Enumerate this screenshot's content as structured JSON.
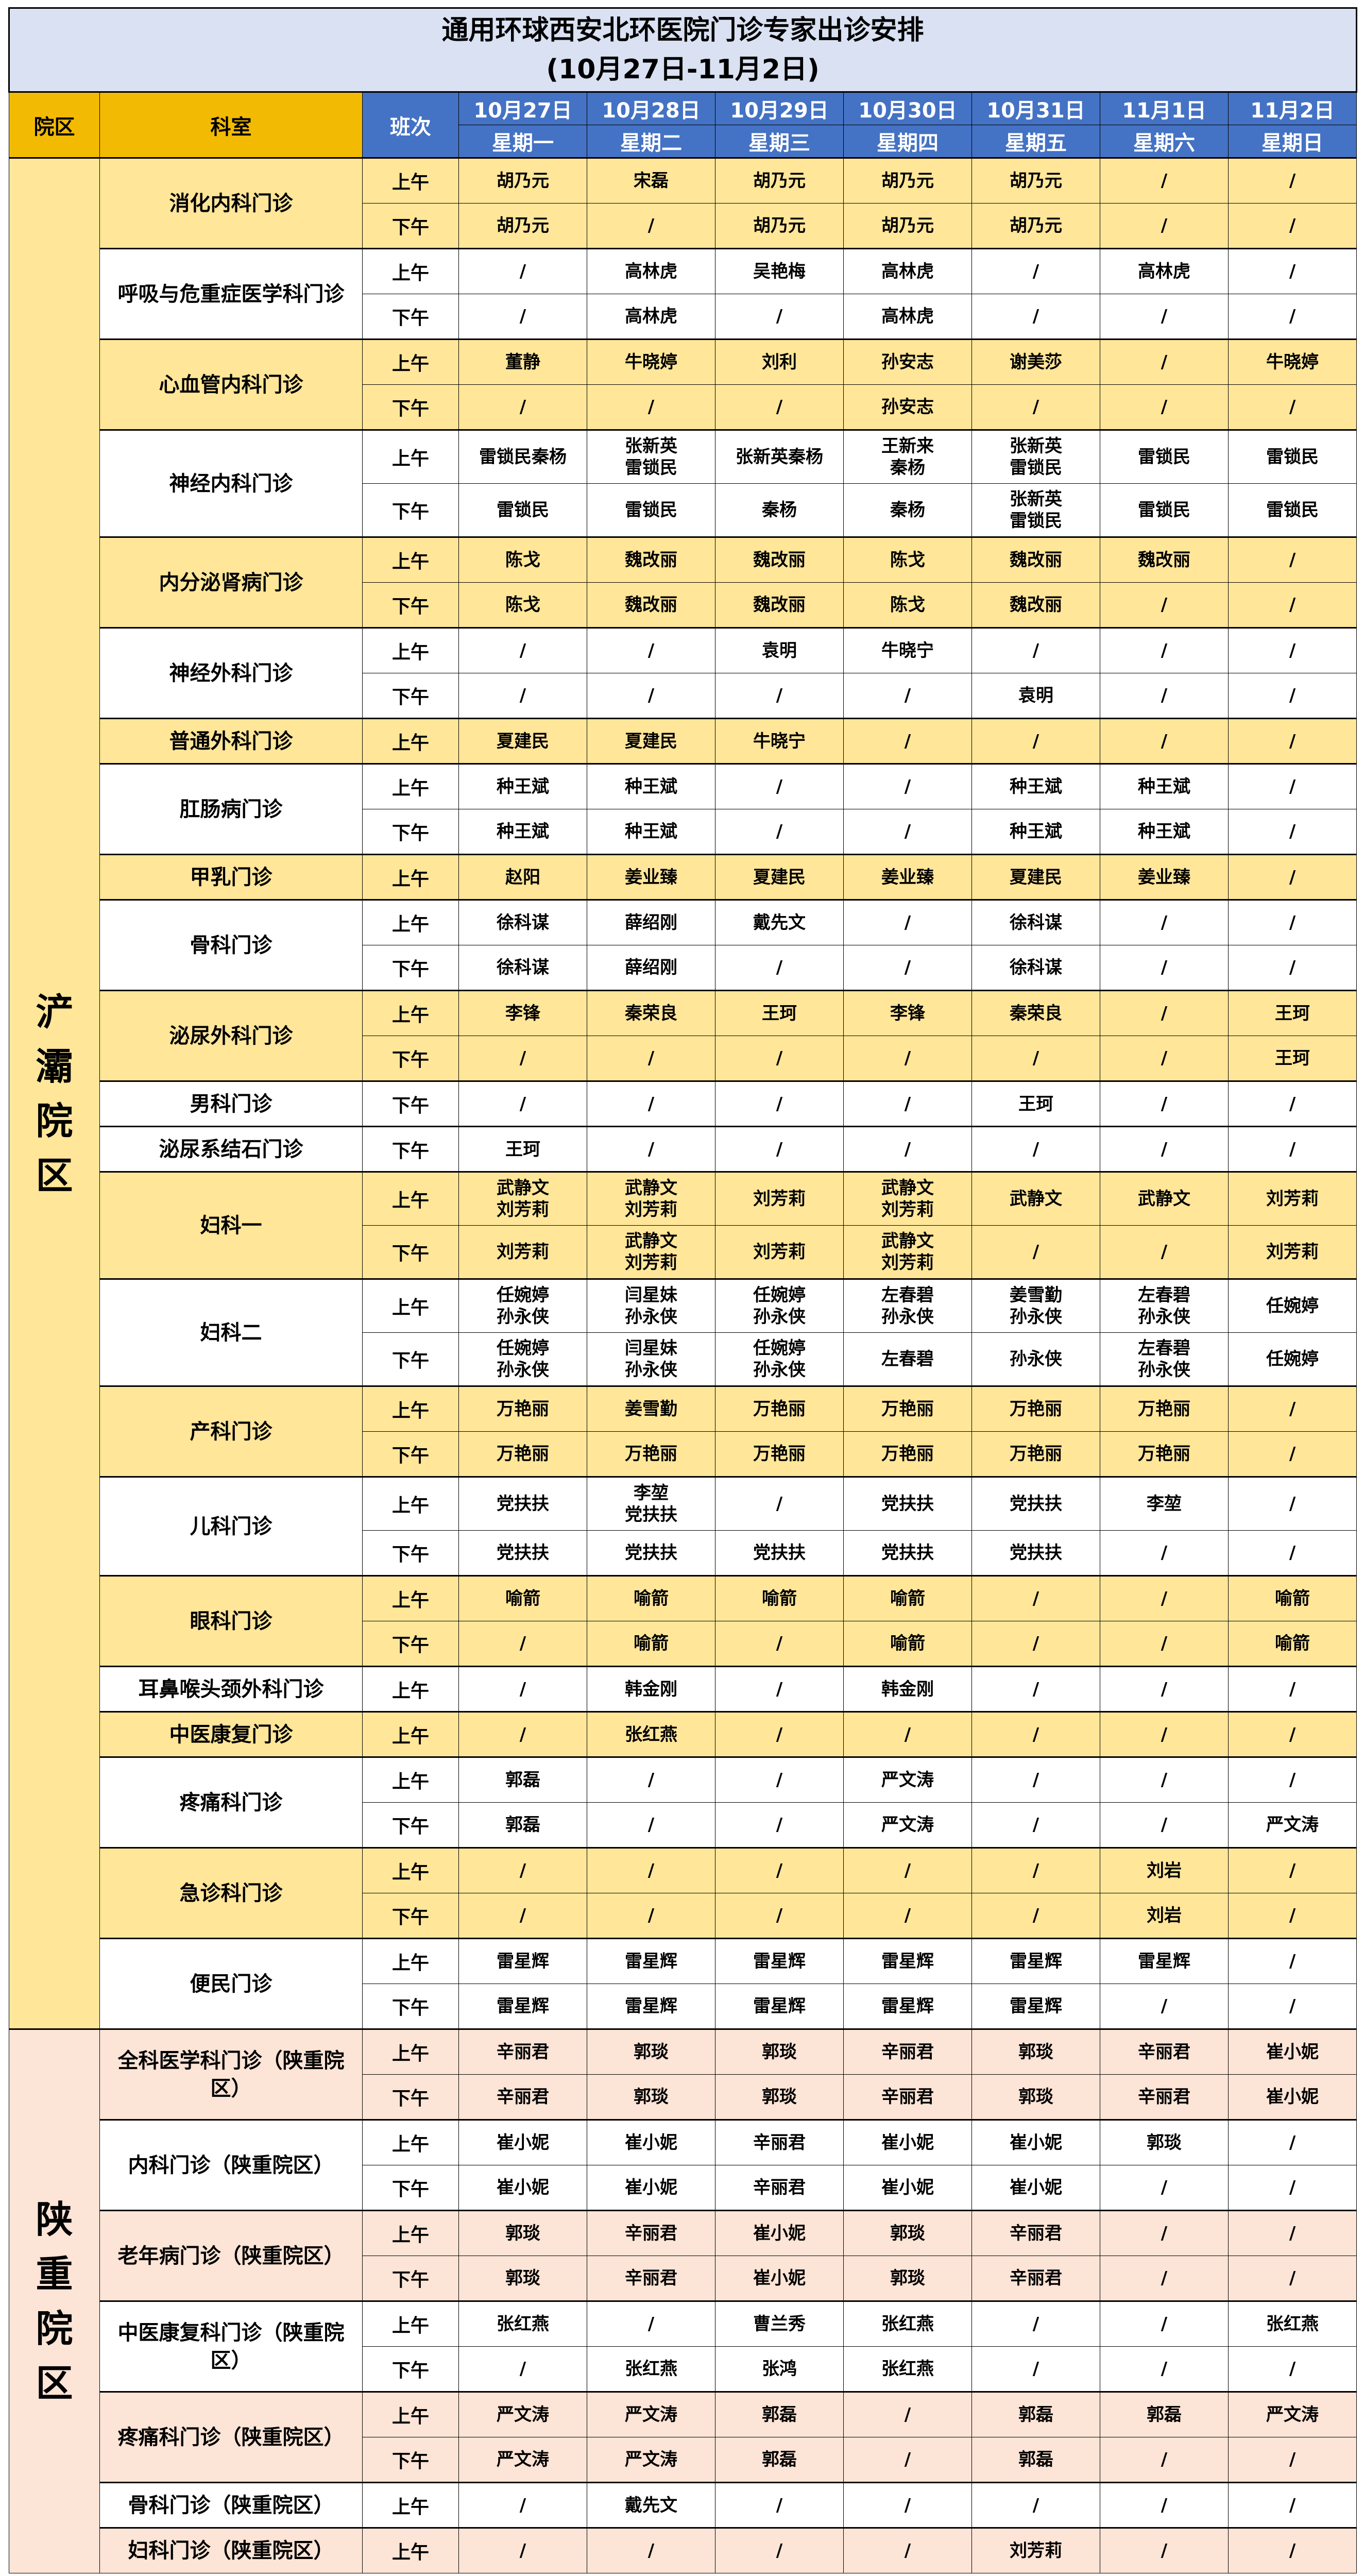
{
  "title": {
    "line1": "通用环球西安北环医院门诊专家出诊安排",
    "line2": "(10月27日-11月2日)"
  },
  "header": {
    "campus": "院区",
    "department": "科室",
    "shift": "班次",
    "dates": [
      "10月27日",
      "10月28日",
      "10月29日",
      "10月30日",
      "10月31日",
      "11月1日",
      "11月2日"
    ],
    "weekdays": [
      "星期一",
      "星期二",
      "星期三",
      "星期四",
      "星期五",
      "星期六",
      "星期日"
    ]
  },
  "colors": {
    "title_bg": "#D9E1F2",
    "header_gold": "#F2BA02",
    "header_blue": "#4472C4",
    "highlight_chanba": "#FFE699",
    "highlight_shaanzhong": "#FCE4D6"
  },
  "campuses": [
    {
      "name": "浐灞院区",
      "theme": "yellow",
      "departments": [
        {
          "name": "消化内科门诊",
          "highlight": true,
          "rows": [
            {
              "period": "上午",
              "cells": [
                "胡乃元",
                "宋磊",
                "胡乃元",
                "胡乃元",
                "胡乃元",
                "/",
                "/"
              ]
            },
            {
              "period": "下午",
              "cells": [
                "胡乃元",
                "/",
                "胡乃元",
                "胡乃元",
                "胡乃元",
                "/",
                "/"
              ]
            }
          ]
        },
        {
          "name": "呼吸与危重症医学科门诊",
          "highlight": false,
          "rows": [
            {
              "period": "上午",
              "cells": [
                "/",
                "高林虎",
                "吴艳梅",
                "高林虎",
                "/",
                "高林虎",
                "/"
              ]
            },
            {
              "period": "下午",
              "cells": [
                "/",
                "高林虎",
                "/",
                "高林虎",
                "/",
                "/",
                "/"
              ]
            }
          ]
        },
        {
          "name": "心血管内科门诊",
          "highlight": true,
          "rows": [
            {
              "period": "上午",
              "cells": [
                "董静",
                "牛晓婷",
                "刘利",
                "孙安志",
                "谢美莎",
                "/",
                "牛晓婷"
              ]
            },
            {
              "period": "下午",
              "cells": [
                "/",
                "/",
                "/",
                "孙安志",
                "/",
                "/",
                "/"
              ]
            }
          ]
        },
        {
          "name": "神经内科门诊",
          "highlight": false,
          "rows": [
            {
              "period": "上午",
              "cells": [
                "雷锁民秦杨",
                "张新英\n雷锁民",
                "张新英秦杨",
                "王新来\n秦杨",
                "张新英\n雷锁民",
                "雷锁民",
                "雷锁民"
              ]
            },
            {
              "period": "下午",
              "cells": [
                "雷锁民",
                "雷锁民",
                "秦杨",
                "秦杨",
                "张新英\n雷锁民",
                "雷锁民",
                "雷锁民"
              ]
            }
          ]
        },
        {
          "name": "内分泌肾病门诊",
          "highlight": true,
          "rows": [
            {
              "period": "上午",
              "cells": [
                "陈戈",
                "魏改丽",
                "魏改丽",
                "陈戈",
                "魏改丽",
                "魏改丽",
                "/"
              ]
            },
            {
              "period": "下午",
              "cells": [
                "陈戈",
                "魏改丽",
                "魏改丽",
                "陈戈",
                "魏改丽",
                "/",
                "/"
              ]
            }
          ]
        },
        {
          "name": "神经外科门诊",
          "highlight": false,
          "rows": [
            {
              "period": "上午",
              "cells": [
                "/",
                "/",
                "袁明",
                "牛晓宁",
                "/",
                "/",
                "/"
              ]
            },
            {
              "period": "下午",
              "cells": [
                "/",
                "/",
                "/",
                "/",
                "袁明",
                "/",
                "/"
              ]
            }
          ]
        },
        {
          "name": "普通外科门诊",
          "highlight": true,
          "rows": [
            {
              "period": "上午",
              "cells": [
                "夏建民",
                "夏建民",
                "牛晓宁",
                "/",
                "/",
                "/",
                "/"
              ]
            }
          ]
        },
        {
          "name": "肛肠病门诊",
          "highlight": false,
          "rows": [
            {
              "period": "上午",
              "cells": [
                "种王斌",
                "种王斌",
                "/",
                "/",
                "种王斌",
                "种王斌",
                "/"
              ]
            },
            {
              "period": "下午",
              "cells": [
                "种王斌",
                "种王斌",
                "/",
                "/",
                "种王斌",
                "种王斌",
                "/"
              ]
            }
          ]
        },
        {
          "name": "甲乳门诊",
          "highlight": true,
          "rows": [
            {
              "period": "上午",
              "cells": [
                "赵阳",
                "姜业臻",
                "夏建民",
                "姜业臻",
                "夏建民",
                "姜业臻",
                "/"
              ]
            }
          ]
        },
        {
          "name": "骨科门诊",
          "highlight": false,
          "rows": [
            {
              "period": "上午",
              "cells": [
                "徐科谋",
                "薛绍刚",
                "戴先文",
                "/",
                "徐科谋",
                "/",
                "/"
              ]
            },
            {
              "period": "下午",
              "cells": [
                "徐科谋",
                "薛绍刚",
                "/",
                "/",
                "徐科谋",
                "/",
                "/"
              ]
            }
          ]
        },
        {
          "name": "泌尿外科门诊",
          "highlight": true,
          "rows": [
            {
              "period": "上午",
              "cells": [
                "李锋",
                "秦荣良",
                "王珂",
                "李锋",
                "秦荣良",
                "/",
                "王珂"
              ]
            },
            {
              "period": "下午",
              "cells": [
                "/",
                "/",
                "/",
                "/",
                "/",
                "/",
                "王珂"
              ]
            }
          ]
        },
        {
          "name": "男科门诊",
          "highlight": false,
          "rows": [
            {
              "period": "下午",
              "cells": [
                "/",
                "/",
                "/",
                "/",
                "王珂",
                "/",
                "/"
              ]
            }
          ]
        },
        {
          "name": "泌尿系结石门诊",
          "highlight": false,
          "rows": [
            {
              "period": "下午",
              "cells": [
                "王珂",
                "/",
                "/",
                "/",
                "/",
                "/",
                "/"
              ]
            }
          ]
        },
        {
          "name": "妇科一",
          "highlight": true,
          "rows": [
            {
              "period": "上午",
              "cells": [
                "武静文\n刘芳莉",
                "武静文\n刘芳莉",
                "刘芳莉",
                "武静文\n刘芳莉",
                "武静文",
                "武静文",
                "刘芳莉"
              ]
            },
            {
              "period": "下午",
              "cells": [
                "刘芳莉",
                "武静文\n刘芳莉",
                "刘芳莉",
                "武静文\n刘芳莉",
                "/",
                "/",
                "刘芳莉"
              ]
            }
          ]
        },
        {
          "name": "妇科二",
          "highlight": false,
          "rows": [
            {
              "period": "上午",
              "cells": [
                "任婉婷\n孙永侠",
                "闫星妹\n孙永侠",
                "任婉婷\n孙永侠",
                "左春碧\n孙永侠",
                "姜雪勤\n孙永侠",
                "左春碧\n孙永侠",
                "任婉婷"
              ]
            },
            {
              "period": "下午",
              "cells": [
                "任婉婷\n孙永侠",
                "闫星妹\n孙永侠",
                "任婉婷\n孙永侠",
                "左春碧",
                "孙永侠",
                "左春碧\n孙永侠",
                "任婉婷"
              ]
            }
          ]
        },
        {
          "name": "产科门诊",
          "highlight": true,
          "rows": [
            {
              "period": "上午",
              "cells": [
                "万艳丽",
                "姜雪勤",
                "万艳丽",
                "万艳丽",
                "万艳丽",
                "万艳丽",
                "/"
              ]
            },
            {
              "period": "下午",
              "cells": [
                "万艳丽",
                "万艳丽",
                "万艳丽",
                "万艳丽",
                "万艳丽",
                "万艳丽",
                "/"
              ]
            }
          ]
        },
        {
          "name": "儿科门诊",
          "highlight": false,
          "rows": [
            {
              "period": "上午",
              "cells": [
                "党扶扶",
                "李堃\n党扶扶",
                "/",
                "党扶扶",
                "党扶扶",
                "李堃",
                "/"
              ]
            },
            {
              "period": "下午",
              "cells": [
                "党扶扶",
                "党扶扶",
                "党扶扶",
                "党扶扶",
                "党扶扶",
                "/",
                "/"
              ]
            }
          ]
        },
        {
          "name": "眼科门诊",
          "highlight": true,
          "rows": [
            {
              "period": "上午",
              "cells": [
                "喻箭",
                "喻箭",
                "喻箭",
                "喻箭",
                "/",
                "/",
                "喻箭"
              ]
            },
            {
              "period": "下午",
              "cells": [
                "/",
                "喻箭",
                "/",
                "喻箭",
                "/",
                "/",
                "喻箭"
              ]
            }
          ]
        },
        {
          "name": "耳鼻喉头颈外科门诊",
          "highlight": false,
          "rows": [
            {
              "period": "上午",
              "cells": [
                "/",
                "韩金刚",
                "/",
                "韩金刚",
                "/",
                "/",
                "/"
              ]
            }
          ]
        },
        {
          "name": "中医康复门诊",
          "highlight": true,
          "rows": [
            {
              "period": "上午",
              "cells": [
                "/",
                "张红燕",
                "/",
                "/",
                "/",
                "/",
                "/"
              ]
            }
          ]
        },
        {
          "name": "疼痛科门诊",
          "highlight": false,
          "rows": [
            {
              "period": "上午",
              "cells": [
                "郭磊",
                "/",
                "/",
                "严文涛",
                "/",
                "/",
                "/"
              ]
            },
            {
              "period": "下午",
              "cells": [
                "郭磊",
                "/",
                "/",
                "严文涛",
                "/",
                "/",
                "严文涛"
              ]
            }
          ]
        },
        {
          "name": "急诊科门诊",
          "highlight": true,
          "rows": [
            {
              "period": "上午",
              "cells": [
                "/",
                "/",
                "/",
                "/",
                "/",
                "刘岩",
                "/"
              ]
            },
            {
              "period": "下午",
              "cells": [
                "/",
                "/",
                "/",
                "/",
                "/",
                "刘岩",
                "/"
              ]
            }
          ]
        },
        {
          "name": "便民门诊",
          "highlight": false,
          "rows": [
            {
              "period": "上午",
              "cells": [
                "雷星辉",
                "雷星辉",
                "雷星辉",
                "雷星辉",
                "雷星辉",
                "雷星辉",
                "/"
              ]
            },
            {
              "period": "下午",
              "cells": [
                "雷星辉",
                "雷星辉",
                "雷星辉",
                "雷星辉",
                "雷星辉",
                "/",
                "/"
              ]
            }
          ]
        }
      ]
    },
    {
      "name": "陕重院区",
      "theme": "peach",
      "departments": [
        {
          "name": "全科医学科门诊（陕重院区）",
          "highlight": true,
          "rows": [
            {
              "period": "上午",
              "cells": [
                "辛丽君",
                "郭琰",
                "郭琰",
                "辛丽君",
                "郭琰",
                "辛丽君",
                "崔小妮"
              ]
            },
            {
              "period": "下午",
              "cells": [
                "辛丽君",
                "郭琰",
                "郭琰",
                "辛丽君",
                "郭琰",
                "辛丽君",
                "崔小妮"
              ]
            }
          ]
        },
        {
          "name": "内科门诊（陕重院区）",
          "highlight": false,
          "rows": [
            {
              "period": "上午",
              "cells": [
                "崔小妮",
                "崔小妮",
                "辛丽君",
                "崔小妮",
                "崔小妮",
                "郭琰",
                "/"
              ]
            },
            {
              "period": "下午",
              "cells": [
                "崔小妮",
                "崔小妮",
                "辛丽君",
                "崔小妮",
                "崔小妮",
                "/",
                "/"
              ]
            }
          ]
        },
        {
          "name": "老年病门诊（陕重院区）",
          "highlight": true,
          "rows": [
            {
              "period": "上午",
              "cells": [
                "郭琰",
                "辛丽君",
                "崔小妮",
                "郭琰",
                "辛丽君",
                "/",
                "/"
              ]
            },
            {
              "period": "下午",
              "cells": [
                "郭琰",
                "辛丽君",
                "崔小妮",
                "郭琰",
                "辛丽君",
                "/",
                "/"
              ]
            }
          ]
        },
        {
          "name": "中医康复科门诊（陕重院区）",
          "highlight": false,
          "rows": [
            {
              "period": "上午",
              "cells": [
                "张红燕",
                "/",
                "曹兰秀",
                "张红燕",
                "/",
                "/",
                "张红燕"
              ]
            },
            {
              "period": "下午",
              "cells": [
                "/",
                "张红燕",
                "张鸿",
                "张红燕",
                "/",
                "/",
                "/"
              ]
            }
          ]
        },
        {
          "name": "疼痛科门诊（陕重院区）",
          "highlight": true,
          "rows": [
            {
              "period": "上午",
              "cells": [
                "严文涛",
                "严文涛",
                "郭磊",
                "/",
                "郭磊",
                "郭磊",
                "严文涛"
              ]
            },
            {
              "period": "下午",
              "cells": [
                "严文涛",
                "严文涛",
                "郭磊",
                "/",
                "郭磊",
                "/",
                "/"
              ]
            }
          ]
        },
        {
          "name": "骨科门诊（陕重院区）",
          "highlight": false,
          "rows": [
            {
              "period": "上午",
              "cells": [
                "/",
                "戴先文",
                "/",
                "/",
                "/",
                "/",
                "/"
              ]
            }
          ]
        },
        {
          "name": "妇科门诊（陕重院区）",
          "highlight": true,
          "rows": [
            {
              "period": "上午",
              "cells": [
                "/",
                "/",
                "/",
                "/",
                "刘芳莉",
                "/",
                "/"
              ]
            }
          ]
        }
      ]
    }
  ]
}
